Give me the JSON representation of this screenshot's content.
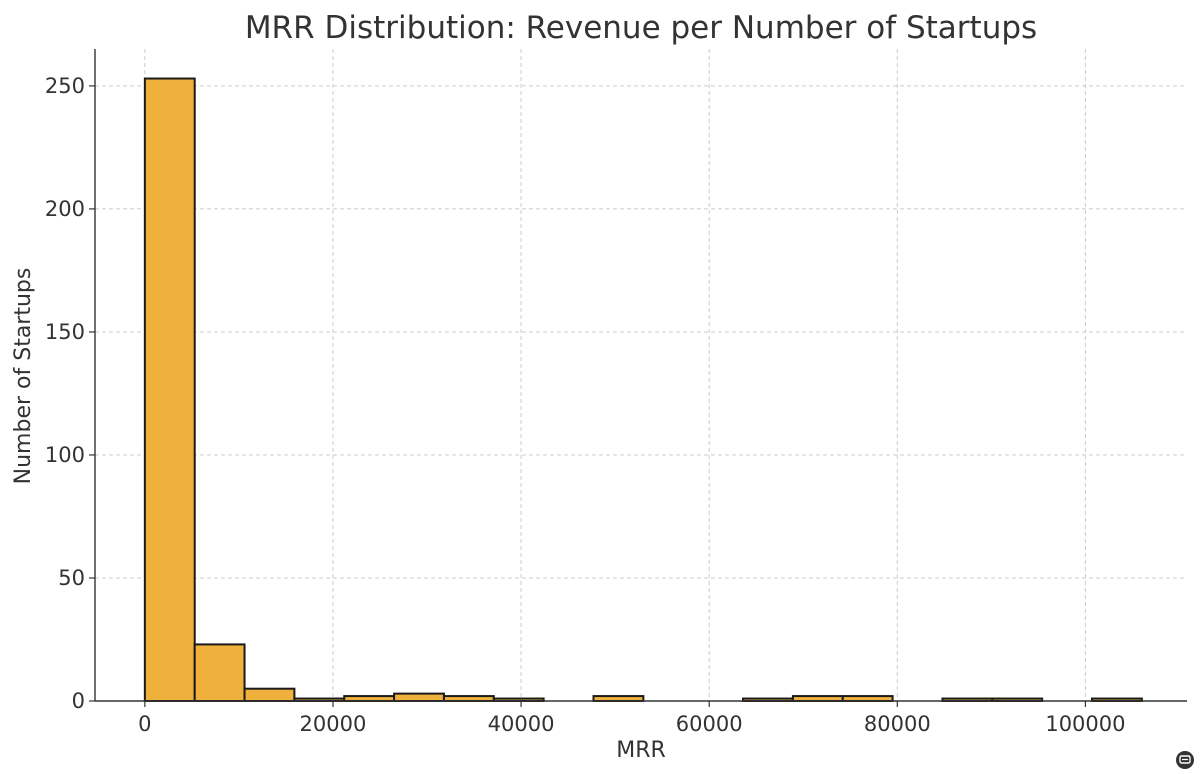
{
  "chart_data": {
    "type": "bar",
    "title": "MRR Distribution: Revenue per Number of Startups",
    "xlabel": "MRR",
    "ylabel": "Number of Startups",
    "xlim": [
      -5300,
      110800
    ],
    "ylim": [
      0,
      265
    ],
    "xticks": [
      0,
      20000,
      40000,
      60000,
      80000,
      100000
    ],
    "yticks": [
      0,
      50,
      100,
      150,
      200,
      250
    ],
    "bin_edges": [
      0,
      5300,
      10600,
      15900,
      21200,
      26500,
      31800,
      37100,
      42400,
      47700,
      53000,
      58300,
      63600,
      68900,
      74200,
      79500,
      84800,
      90100,
      95400,
      100700,
      106000
    ],
    "values": [
      253,
      23,
      5,
      1,
      2,
      3,
      2,
      1,
      0,
      2,
      0,
      0,
      1,
      2,
      2,
      0,
      1,
      1,
      0,
      1
    ],
    "bar_color": "#f0b13c",
    "edge_color": "#1a1a1a",
    "grid": true
  },
  "badge": {
    "icon": "chat-bubble-icon",
    "color": "#333333"
  }
}
